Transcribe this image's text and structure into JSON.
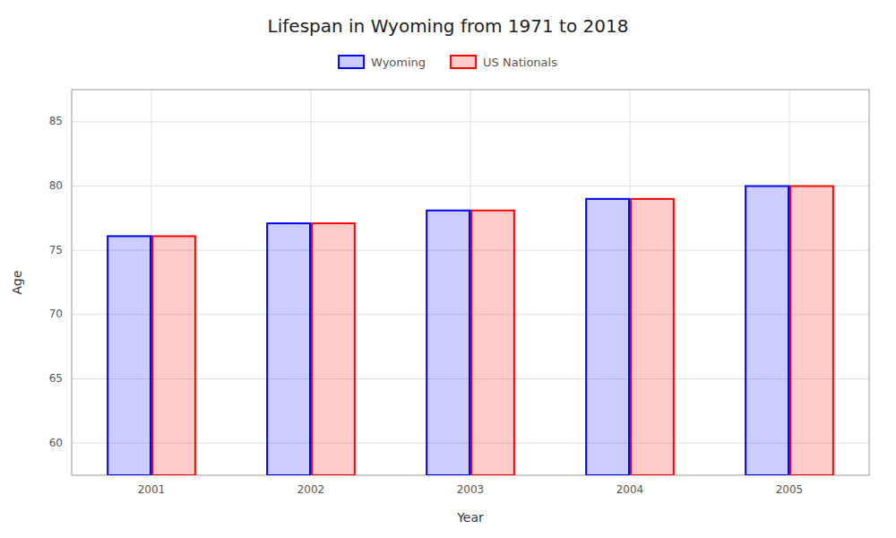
{
  "chart_data": {
    "type": "bar",
    "title": "Lifespan in Wyoming from 1971 to 2018",
    "x_label": "Year",
    "y_label": "Age",
    "categories": [
      "2001",
      "2002",
      "2003",
      "2004",
      "2005"
    ],
    "series": [
      {
        "name": "Wyoming",
        "color": "#0000ff",
        "values": [
          76.1,
          77.1,
          78.1,
          79.0,
          80.0
        ]
      },
      {
        "name": "US Nationals",
        "color": "#ff0000",
        "values": [
          76.1,
          77.1,
          78.1,
          79.0,
          80.0
        ]
      }
    ],
    "ylim": [
      57.5,
      87.5
    ],
    "yticks": [
      60,
      65,
      70,
      75,
      80,
      85
    ],
    "grid": true,
    "legend": "top"
  }
}
